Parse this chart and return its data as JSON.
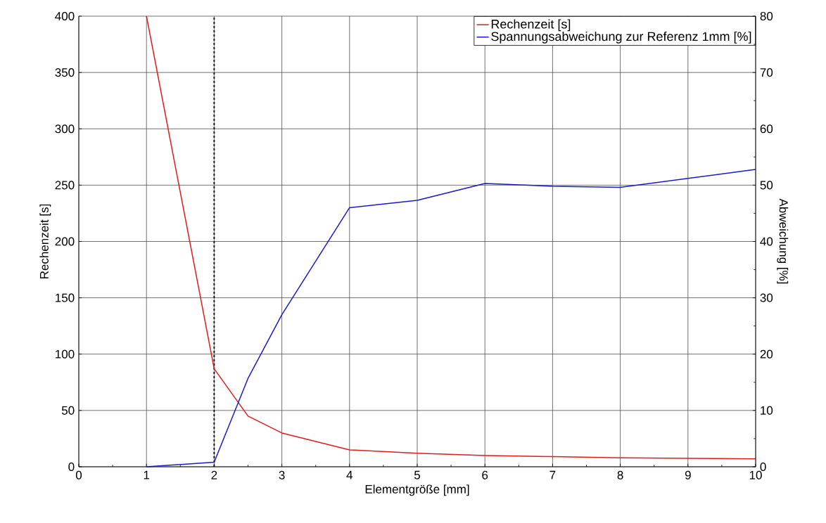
{
  "chart_data": {
    "type": "line",
    "xlabel": "Elementgröße [mm]",
    "ylabel": "Rechenzeit [s]",
    "y2label": "Abweichung [%]",
    "xlim": [
      0,
      10
    ],
    "xticks": [
      0,
      1,
      2,
      3,
      4,
      5,
      6,
      7,
      8,
      9,
      10
    ],
    "ylim": [
      0,
      400
    ],
    "yticks": [
      0,
      50,
      100,
      150,
      200,
      250,
      300,
      350,
      400
    ],
    "y2lim": [
      0,
      80
    ],
    "y2ticks": [
      0,
      10,
      20,
      30,
      40,
      50,
      60,
      70,
      80
    ],
    "grid": true,
    "legend": "top right",
    "marker": "none",
    "line_style": "solid",
    "ref_lines": [
      {
        "axis": "x",
        "value": 2,
        "color": "#000000",
        "line_style": "dashed"
      }
    ],
    "series": [
      {
        "name": "Rechenzeit [s]",
        "color": "#e41a1c",
        "x": [
          1,
          2,
          2.5,
          3,
          4,
          5,
          6,
          7,
          8,
          9,
          10
        ],
        "values": [
          400,
          87,
          45,
          30,
          15,
          12,
          10,
          9,
          8,
          7.5,
          7
        ]
      },
      {
        "name": "Spannungsabweichung zur Referenz 1mm [%]",
        "color": "#1a1acc",
        "axis": "y2",
        "x": [
          1,
          2,
          2.5,
          3,
          4,
          5,
          6,
          7,
          8,
          9,
          10
        ],
        "values": [
          0,
          0.8,
          15.7,
          27,
          46,
          47.3,
          50.3,
          49.8,
          49.6,
          51.2,
          52.8
        ]
      }
    ]
  }
}
